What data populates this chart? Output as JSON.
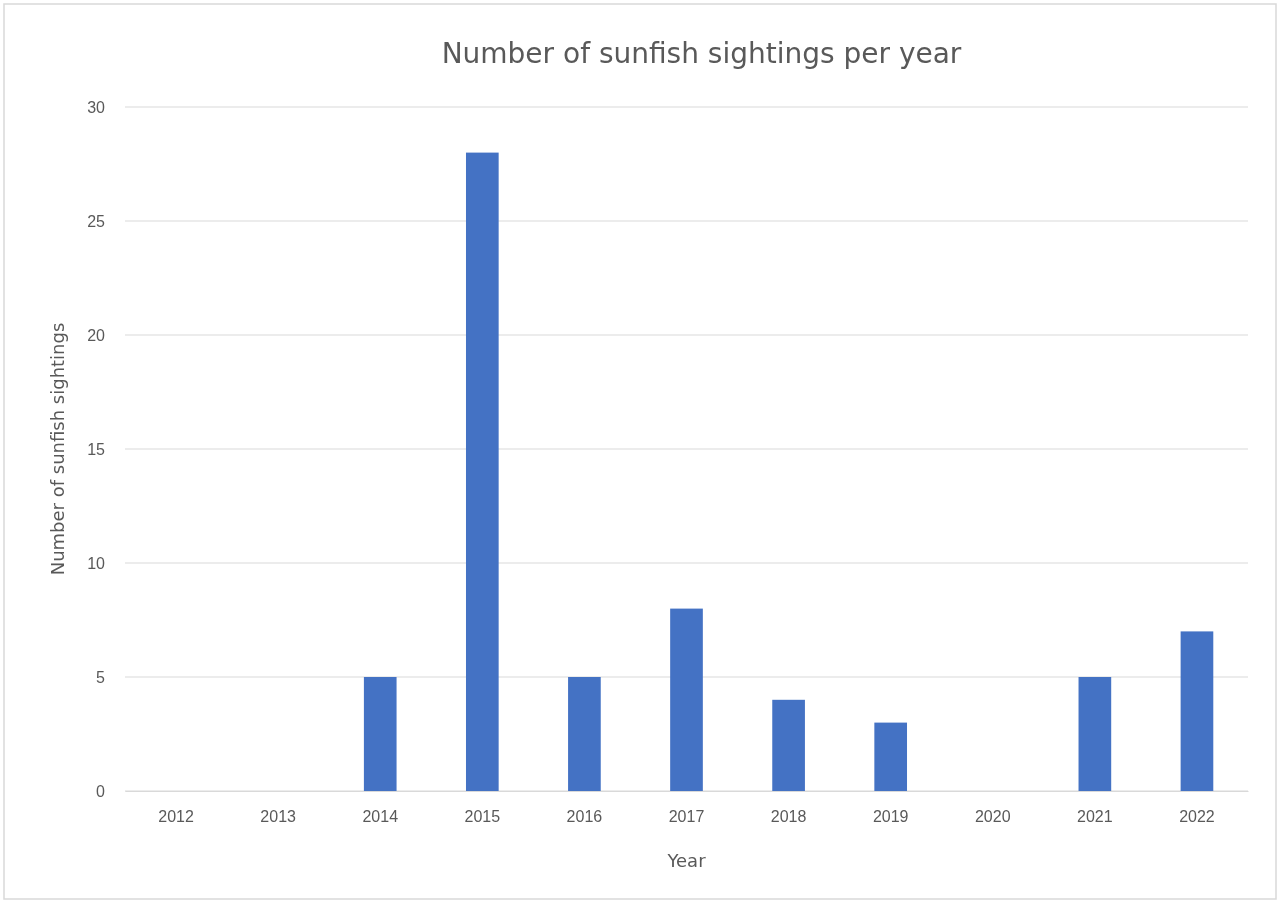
{
  "chart_data": {
    "type": "bar",
    "title": "Number of sunfish sightings per year",
    "xlabel": "Year",
    "ylabel": "Number of sunfish sightings",
    "categories": [
      "2012",
      "2013",
      "2014",
      "2015",
      "2016",
      "2017",
      "2018",
      "2019",
      "2020",
      "2021",
      "2022"
    ],
    "values": [
      0,
      0,
      5,
      28,
      5,
      8,
      4,
      3,
      0,
      5,
      7
    ],
    "color": "#4472c4",
    "ylim": [
      0,
      30
    ],
    "yticks": [
      0,
      5,
      10,
      15,
      20,
      25,
      30
    ],
    "grid": "y"
  }
}
